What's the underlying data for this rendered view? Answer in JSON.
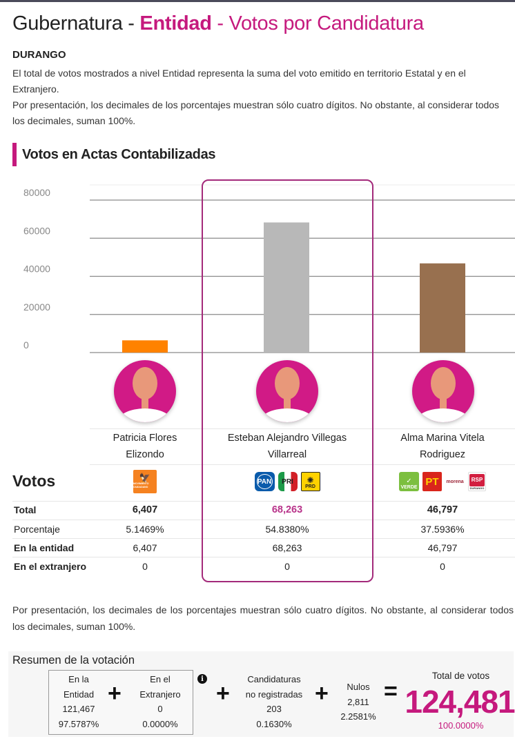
{
  "header": {
    "title_part1": "Gubernatura - ",
    "title_part2": "Entidad",
    "title_part3": " - Votos por Candidatura",
    "state": "DURANGO",
    "description_line1": "El total de votos mostrados a nivel Entidad representa la suma del voto emitido en territorio Estatal y en el Extranjero.",
    "description_line2": "Por presentación, los decimales de los porcentajes muestran sólo cuatro dígitos. No obstante, al considerar todos los decimales, suman 100%."
  },
  "section": {
    "title": "Votos en Actas Contabilizadas"
  },
  "chart_data": {
    "type": "bar",
    "title": "Votos en Actas Contabilizadas",
    "xlabel": "",
    "ylabel": "",
    "categories": [
      "Patricia Flores Elizondo",
      "Esteban Alejandro Villegas Villarreal",
      "Alma Marina Vitela Rodriguez"
    ],
    "values": [
      6407,
      68263,
      46797
    ],
    "colors": [
      "#ff8200",
      "#b8b8b8",
      "#98704f"
    ],
    "ylim": [
      0,
      80000
    ],
    "yticks": [
      0,
      20000,
      40000,
      60000,
      80000
    ],
    "grid": true,
    "highlighted_category": "Esteban Alejandro Villegas Villarreal"
  },
  "candidates": [
    {
      "name_line1": "Patricia Flores",
      "name_line2": "Elizondo",
      "parties": [
        "Movimiento Ciudadano"
      ],
      "total": "6,407",
      "percentage": "5.1469%",
      "entidad": "6,407",
      "extranjero": "0"
    },
    {
      "name_line1": "Esteban Alejandro Villegas",
      "name_line2": "Villarreal",
      "parties": [
        "PAN",
        "PRI",
        "PRD"
      ],
      "total": "68,263",
      "percentage": "54.8380%",
      "entidad": "68,263",
      "extranjero": "0"
    },
    {
      "name_line1": "Alma Marina Vitela",
      "name_line2": "Rodriguez",
      "parties": [
        "VERDE",
        "PT",
        "morena",
        "RSP"
      ],
      "total": "46,797",
      "percentage": "37.5936%",
      "entidad": "46,797",
      "extranjero": "0"
    }
  ],
  "logos": {
    "mc_text": "MOVIMIENTO CIUDADANO",
    "pan_text": "PAN",
    "pri_text": "PRI",
    "prd_text": "PRD",
    "verde_text": "VERDE",
    "pt_text": "PT",
    "morena_text": "morena",
    "rsp_text": "RSP",
    "rsp_sub": "DURANGO"
  },
  "table": {
    "heading": "Votos",
    "row_labels": {
      "total": "Total",
      "percentage": "Porcentaje",
      "entidad": "En la entidad",
      "extranjero": "En el extranjero"
    }
  },
  "footnote": "Por presentación, los decimales de los porcentajes muestran sólo cuatro dígitos. No obstante, al considerar todos los decimales, suman 100%.",
  "summary": {
    "title": "Resumen de la votación",
    "entidad": {
      "label_line1": "En la",
      "label_line2": "Entidad",
      "votes": "121,467",
      "pct": "97.5787%"
    },
    "extranjero": {
      "label_line1": "En el",
      "label_line2": "Extranjero",
      "votes": "0",
      "pct": "0.0000%"
    },
    "no_registradas": {
      "label_line1": "Candidaturas",
      "label_line2": "no registradas",
      "votes": "203",
      "pct": "0.1630%"
    },
    "nulos": {
      "label": "Nulos",
      "votes": "2,811",
      "pct": "2.2581%"
    },
    "total": {
      "label": "Total de votos",
      "votes": "124,481",
      "pct": "100.0000%"
    },
    "plus_symbol": "+",
    "equals_symbol": "=",
    "info_symbol": "i"
  },
  "colors": {
    "accent": "#c5197d",
    "highlight_frame": "#a3297a"
  }
}
